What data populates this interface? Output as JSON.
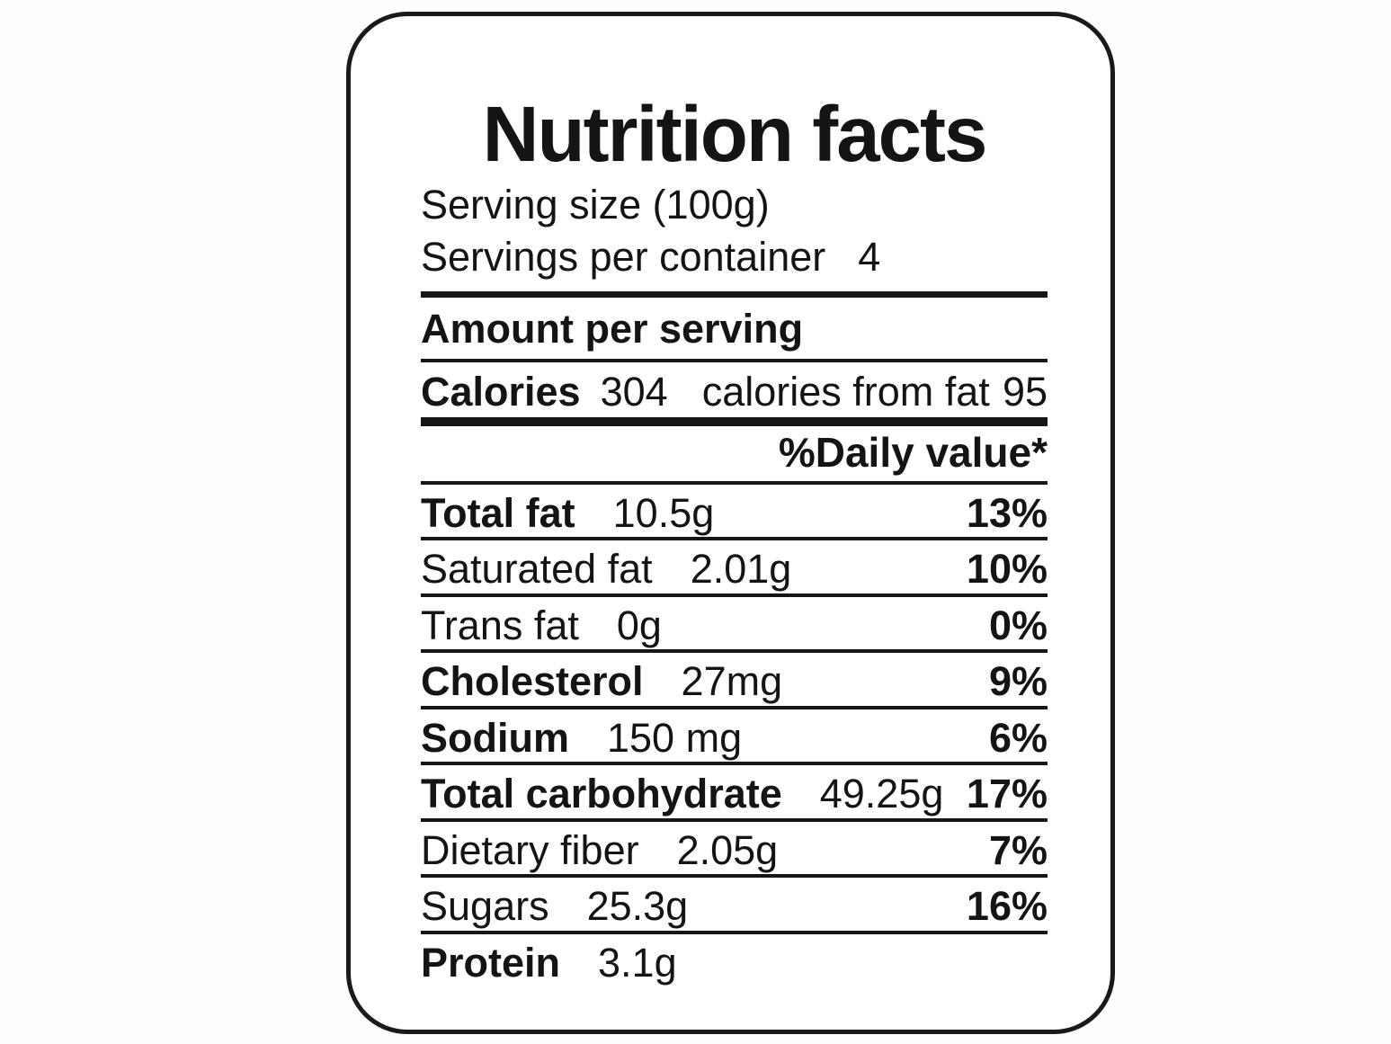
{
  "colors": {
    "ink": "#161616",
    "background": "#ffffff"
  },
  "nutrition_label": {
    "title": "Nutrition facts",
    "serving_size": "Serving size (100g)",
    "servings_per_container": {
      "label": "Servings per container",
      "value": "4"
    },
    "amount_per_serving_heading": "Amount per serving",
    "calories": {
      "label": "Calories",
      "value": "304",
      "from_fat_label": "calories from fat",
      "from_fat_value": "95"
    },
    "daily_value_header": "%Daily value*",
    "nutrients": [
      {
        "name": "Total fat",
        "amount": "10.5g",
        "daily_value": "13%"
      },
      {
        "name": "Saturated fat",
        "amount": "2.01g",
        "daily_value": "10%"
      },
      {
        "name": "Trans fat",
        "amount": "0g",
        "daily_value": "0%"
      },
      {
        "name": "Cholesterol",
        "amount": "27mg",
        "daily_value": "9%"
      },
      {
        "name": "Sodium",
        "amount": "150 mg",
        "daily_value": "6%"
      },
      {
        "name": "Total carbohydrate",
        "amount": "49.25g",
        "daily_value": "17%"
      },
      {
        "name": "Dietary fiber",
        "amount": "2.05g",
        "daily_value": "7%"
      },
      {
        "name": "Sugars",
        "amount": "25.3g",
        "daily_value": "16%"
      },
      {
        "name": "Protein",
        "amount": "3.1g",
        "daily_value": ""
      }
    ]
  }
}
